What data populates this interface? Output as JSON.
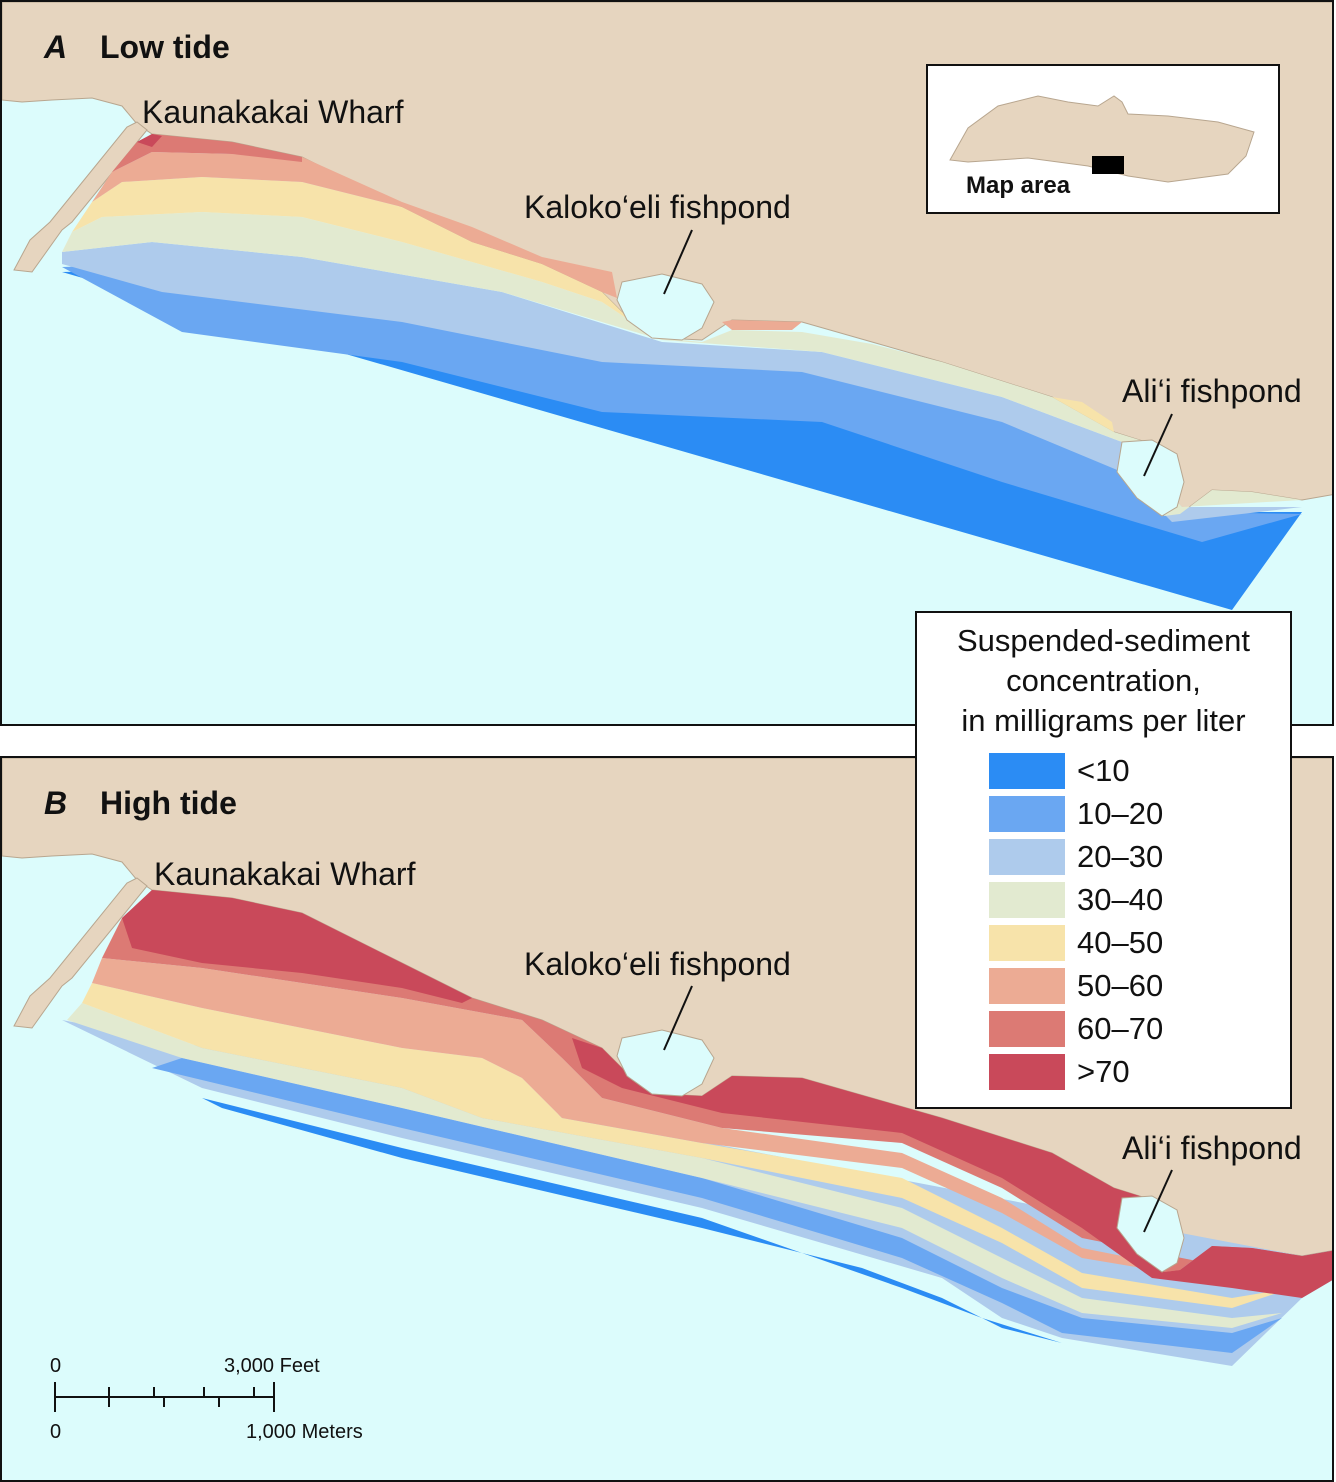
{
  "panels": [
    {
      "letter": "A",
      "title": "Low tide",
      "labels": {
        "wharf": "Kaunakakai Wharf",
        "kalokoeli": "Kaloko‘eli fishpond",
        "alii": "Ali‘i fishpond"
      }
    },
    {
      "letter": "B",
      "title": "High tide",
      "labels": {
        "wharf": "Kaunakakai Wharf",
        "kalokoeli": "Kaloko‘eli fishpond",
        "alii": "Ali‘i fishpond"
      }
    }
  ],
  "inset": {
    "label": "Map area"
  },
  "legend": {
    "title_lines": [
      "Suspended-sediment",
      "concentration,",
      "in milligrams per liter"
    ],
    "items": [
      {
        "label": "<10",
        "color": "#2b8cf4"
      },
      {
        "label": "10–20",
        "color": "#6aa7f2"
      },
      {
        "label": "20–30",
        "color": "#aecbec"
      },
      {
        "label": "30–40",
        "color": "#e2ead0"
      },
      {
        "label": "40–50",
        "color": "#f7e3aa"
      },
      {
        "label": "50–60",
        "color": "#ecab94"
      },
      {
        "label": "60–70",
        "color": "#dc7a74"
      },
      {
        "label": ">70",
        "color": "#c9495a"
      }
    ]
  },
  "scale_bar": {
    "feet_zero": "0",
    "feet_label": "3,000 Feet",
    "meters_zero": "0",
    "meters_label": "1,000 Meters"
  },
  "colors": {
    "land": "#e6d5bf",
    "water": "#dcfcfc",
    "outline": "#111111"
  }
}
